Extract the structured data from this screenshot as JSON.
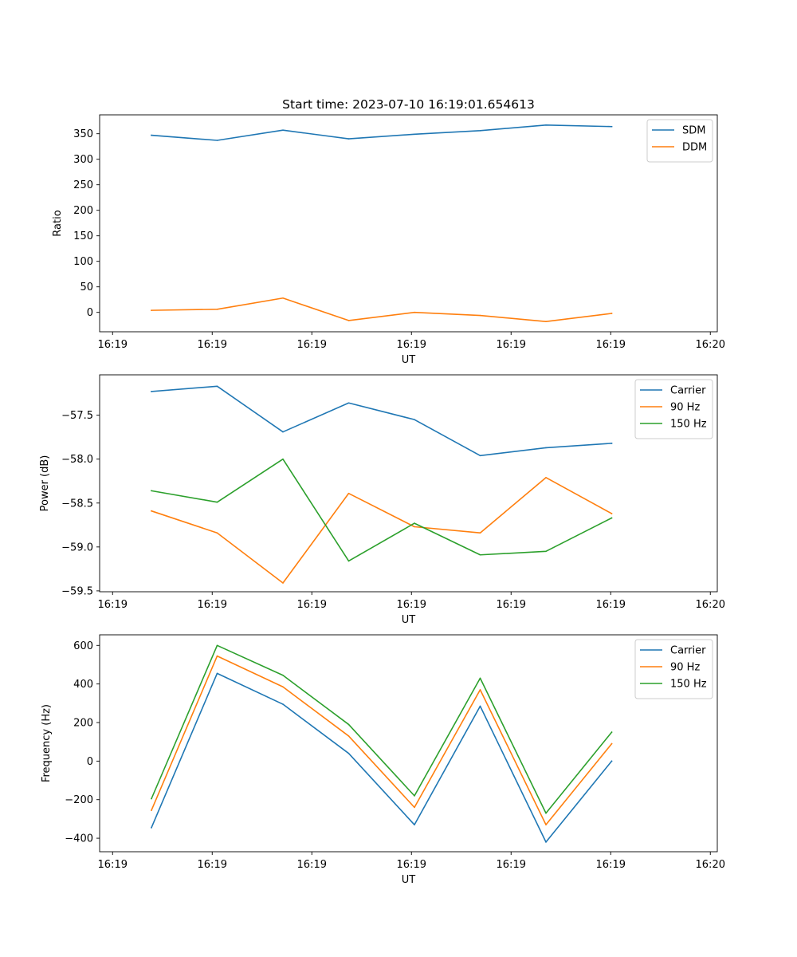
{
  "figure_title": "Start time: 2023-07-10 16:19:01.654613",
  "chart_data": [
    {
      "type": "line",
      "title": "Start time: 2023-07-10 16:19:01.654613",
      "xlabel": "UT",
      "ylabel": "Ratio",
      "x": [
        0.52,
        1.18,
        1.84,
        2.5,
        3.16,
        3.82,
        4.48,
        5.14
      ],
      "xlim": [
        0,
        6.2
      ],
      "xticks": [
        0.13,
        1.13,
        2.13,
        3.13,
        4.13,
        5.13,
        6.13
      ],
      "xticklabels": [
        "16:19",
        "16:19",
        "16:19",
        "16:19",
        "16:19",
        "16:19",
        "16:20"
      ],
      "ylim": [
        -38,
        387
      ],
      "yticks": [
        0,
        50,
        100,
        150,
        200,
        250,
        300,
        350
      ],
      "yticklabels": [
        "0",
        "50",
        "100",
        "150",
        "200",
        "250",
        "300",
        "350"
      ],
      "legend_position": "top-right",
      "series": [
        {
          "name": "SDM",
          "color": "#1f77b4",
          "values": [
            347,
            337,
            357,
            340,
            349,
            356,
            367,
            364
          ]
        },
        {
          "name": "DDM",
          "color": "#ff7f0e",
          "values": [
            4,
            6,
            28,
            -16,
            0,
            -6,
            -18,
            -2
          ]
        }
      ]
    },
    {
      "type": "line",
      "title": "",
      "xlabel": "UT",
      "ylabel": "Power (dB)",
      "x": [
        0.52,
        1.18,
        1.84,
        2.5,
        3.16,
        3.82,
        4.48,
        5.14
      ],
      "xlim": [
        0,
        6.2
      ],
      "xticks": [
        0.13,
        1.13,
        2.13,
        3.13,
        4.13,
        5.13,
        6.13
      ],
      "xticklabels": [
        "16:19",
        "16:19",
        "16:19",
        "16:19",
        "16:19",
        "16:19",
        "16:20"
      ],
      "ylim": [
        -59.51,
        -57.04
      ],
      "yticks": [
        -59.5,
        -59.0,
        -58.5,
        -58.0,
        -57.5
      ],
      "yticklabels": [
        "−59.5",
        "−59.0",
        "−58.5",
        "−58.0",
        "−57.5"
      ],
      "legend_position": "top-right",
      "series": [
        {
          "name": "Carrier",
          "color": "#1f77b4",
          "values": [
            -57.23,
            -57.17,
            -57.69,
            -57.36,
            -57.55,
            -57.96,
            -57.87,
            -57.82
          ]
        },
        {
          "name": "90 Hz",
          "color": "#ff7f0e",
          "values": [
            -58.59,
            -58.84,
            -59.41,
            -58.39,
            -58.77,
            -58.84,
            -58.21,
            -58.62
          ]
        },
        {
          "name": "150 Hz",
          "color": "#2ca02c",
          "values": [
            -58.36,
            -58.49,
            -58.0,
            -59.16,
            -58.73,
            -59.09,
            -59.05,
            -58.67
          ]
        }
      ]
    },
    {
      "type": "line",
      "title": "",
      "xlabel": "UT",
      "ylabel": "Frequency (Hz)",
      "x": [
        0.52,
        1.18,
        1.84,
        2.5,
        3.16,
        3.82,
        4.48,
        5.14
      ],
      "xlim": [
        0,
        6.2
      ],
      "xticks": [
        0.13,
        1.13,
        2.13,
        3.13,
        4.13,
        5.13,
        6.13
      ],
      "xticklabels": [
        "16:19",
        "16:19",
        "16:19",
        "16:19",
        "16:19",
        "16:19",
        "16:20"
      ],
      "ylim": [
        -470,
        655
      ],
      "yticks": [
        -400,
        -200,
        0,
        200,
        400,
        600
      ],
      "yticklabels": [
        "−400",
        "−200",
        "0",
        "200",
        "400",
        "600"
      ],
      "legend_position": "top-right",
      "series": [
        {
          "name": "Carrier",
          "color": "#1f77b4",
          "values": [
            -345,
            455,
            295,
            40,
            -330,
            285,
            -420,
            0
          ]
        },
        {
          "name": "90 Hz",
          "color": "#ff7f0e",
          "values": [
            -255,
            545,
            385,
            130,
            -240,
            370,
            -330,
            90
          ]
        },
        {
          "name": "150 Hz",
          "color": "#2ca02c",
          "values": [
            -195,
            600,
            445,
            190,
            -180,
            430,
            -270,
            150
          ]
        }
      ]
    }
  ]
}
